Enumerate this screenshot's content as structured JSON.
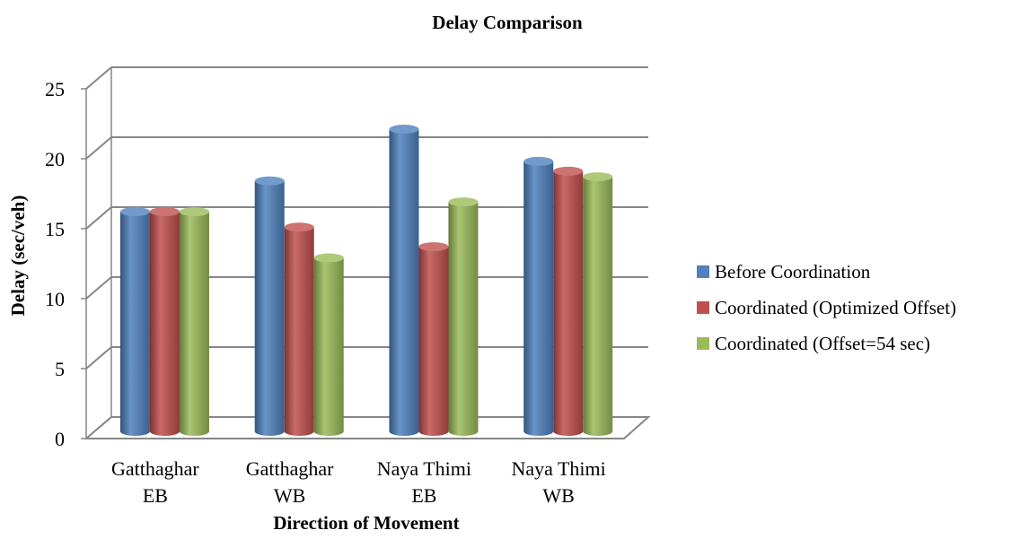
{
  "chart_data": {
    "type": "bar",
    "title": "Delay Comparison",
    "xlabel": "Direction of Movement",
    "ylabel": "Delay (sec/veh)",
    "ylim": [
      0,
      25
    ],
    "yticks": [
      "0",
      "5",
      "10",
      "15",
      "20",
      "25"
    ],
    "categories": [
      [
        "Gatthaghar",
        "EB"
      ],
      [
        "Gatthaghar",
        "WB"
      ],
      [
        "Naya Thimi",
        "EB"
      ],
      [
        "Naya Thimi",
        "WB"
      ]
    ],
    "series": [
      {
        "name": "Before Coordination",
        "color": "#4f81bd",
        "values": [
          15.7,
          17.9,
          21.6,
          19.3
        ]
      },
      {
        "name": "Coordinated (Optimized Offset)",
        "color": "#c0504d",
        "values": [
          15.7,
          14.6,
          13.2,
          18.6
        ]
      },
      {
        "name": "Coordinated (Offset=54 sec)",
        "color": "#9bbb59",
        "values": [
          15.7,
          12.4,
          16.4,
          18.2
        ]
      }
    ],
    "grid": true,
    "legend_position": "right",
    "style": "3d-cylinder"
  }
}
